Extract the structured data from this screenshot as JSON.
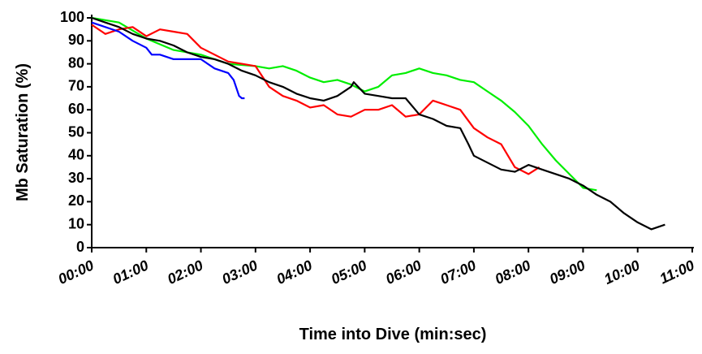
{
  "chart_data": {
    "type": "line",
    "x_label": "Time into Dive (min:sec)",
    "y_label": "Mb Saturation (%)",
    "xlim": [
      0,
      11
    ],
    "ylim": [
      0,
      100
    ],
    "xticks": [
      {
        "value": 0,
        "label": "00:00"
      },
      {
        "value": 1,
        "label": "01:00"
      },
      {
        "value": 2,
        "label": "02:00"
      },
      {
        "value": 3,
        "label": "03:00"
      },
      {
        "value": 4,
        "label": "04:00"
      },
      {
        "value": 5,
        "label": "05:00"
      },
      {
        "value": 6,
        "label": "06:00"
      },
      {
        "value": 7,
        "label": "07:00"
      },
      {
        "value": 8,
        "label": "08:00"
      },
      {
        "value": 9,
        "label": "09:00"
      },
      {
        "value": 10,
        "label": "10:00"
      },
      {
        "value": 11,
        "label": "11:00"
      }
    ],
    "yticks": [
      0,
      10,
      20,
      30,
      40,
      50,
      60,
      70,
      80,
      90,
      100
    ],
    "grid": false,
    "series": [
      {
        "color": "#00ee00",
        "x": [
          0,
          0.5,
          1,
          1.5,
          2,
          2.5,
          3,
          3.25,
          3.5,
          3.75,
          4,
          4.25,
          4.5,
          4.75,
          5,
          5.25,
          5.5,
          5.75,
          6,
          6.25,
          6.5,
          6.75,
          7,
          7.25,
          7.5,
          7.75,
          8,
          8.25,
          8.5,
          8.75,
          9,
          9.25
        ],
        "values": [
          100,
          98,
          91,
          86,
          84,
          80,
          79,
          78,
          79,
          77,
          74,
          72,
          73,
          71,
          68,
          70,
          75,
          76,
          78,
          76,
          75,
          73,
          72,
          68,
          64,
          59,
          53,
          45,
          38,
          32,
          26,
          25
        ]
      },
      {
        "color": "#ff0000",
        "x": [
          0,
          0.25,
          0.5,
          0.75,
          1,
          1.25,
          1.5,
          1.75,
          2,
          2.25,
          2.5,
          2.75,
          3,
          3.25,
          3.5,
          3.75,
          4,
          4.25,
          4.5,
          4.75,
          5,
          5.25,
          5.5,
          5.75,
          6,
          6.25,
          6.5,
          6.75,
          7,
          7.25,
          7.5,
          7.75,
          8,
          8.2
        ],
        "values": [
          97,
          93,
          95,
          96,
          92,
          95,
          94,
          93,
          87,
          84,
          81,
          80,
          79,
          70,
          66,
          64,
          61,
          62,
          58,
          57,
          60,
          60,
          62,
          57,
          58,
          64,
          62,
          60,
          52,
          48,
          45,
          35,
          32,
          35
        ]
      },
      {
        "color": "#0000ff",
        "x": [
          0,
          0.25,
          0.5,
          0.75,
          1,
          1.1,
          1.25,
          1.5,
          1.75,
          2,
          2.25,
          2.5,
          2.6,
          2.7,
          2.75,
          2.8
        ],
        "values": [
          98,
          96,
          94,
          90,
          87,
          84,
          84,
          82,
          82,
          82,
          78,
          76,
          73,
          66,
          65,
          65
        ]
      },
      {
        "color": "#000000",
        "x": [
          0,
          0.25,
          0.5,
          0.75,
          1,
          1.25,
          1.5,
          1.75,
          2,
          2.25,
          2.5,
          2.75,
          3,
          3.25,
          3.5,
          3.75,
          4,
          4.25,
          4.5,
          4.75,
          4.8,
          5,
          5.25,
          5.5,
          5.75,
          6,
          6.25,
          6.5,
          6.75,
          6.9,
          7,
          7.25,
          7.5,
          7.75,
          8,
          8.25,
          8.5,
          8.75,
          9,
          9.25,
          9.5,
          9.75,
          10,
          10.25,
          10.5
        ],
        "values": [
          100,
          98,
          96,
          93,
          91,
          90,
          88,
          85,
          83,
          82,
          80,
          77,
          75,
          72,
          70,
          67,
          65,
          64,
          66,
          70,
          72,
          67,
          66,
          65,
          65,
          58,
          56,
          53,
          52,
          45,
          40,
          37,
          34,
          33,
          36,
          34,
          32,
          30,
          27,
          23,
          20,
          15,
          11,
          8,
          10
        ]
      }
    ]
  }
}
